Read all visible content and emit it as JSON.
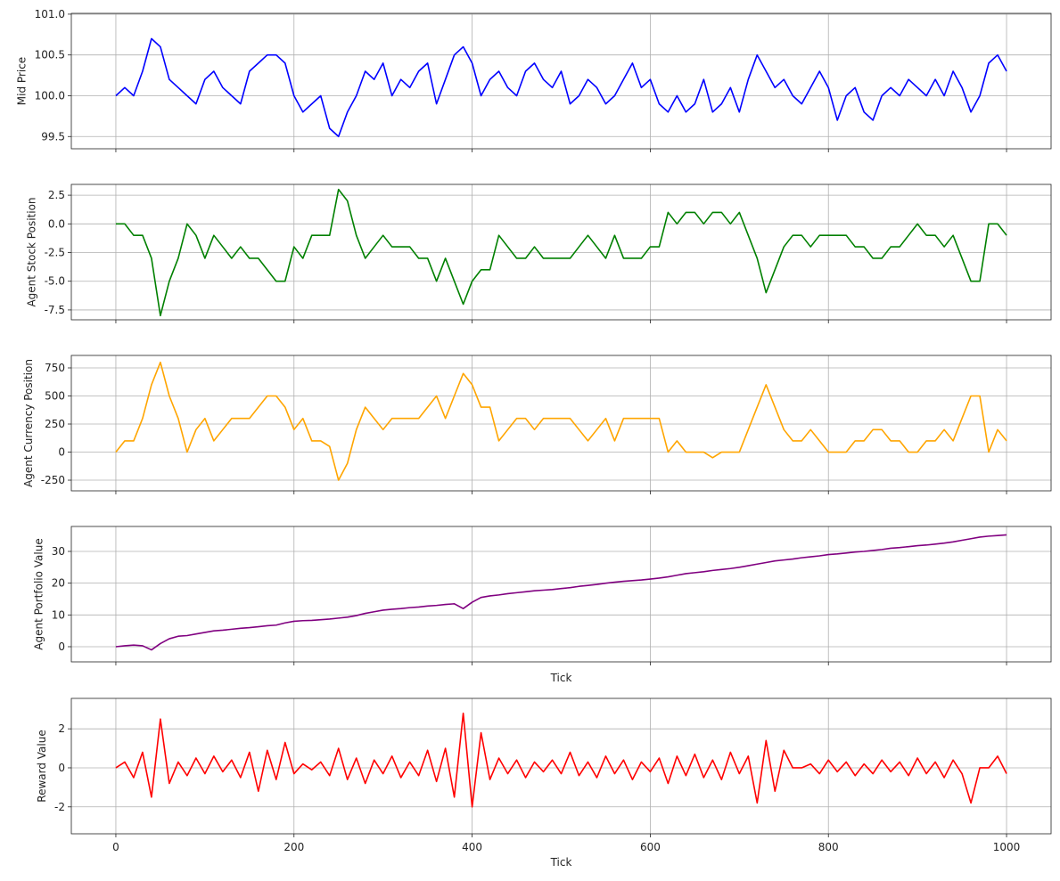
{
  "chart_data": [
    {
      "type": "line",
      "ylabel": "Mid Price",
      "color": "#0000ff",
      "grid": true,
      "xticklabels": false,
      "x": [
        0,
        10,
        20,
        30,
        40,
        50,
        60,
        70,
        80,
        90,
        100,
        110,
        120,
        130,
        140,
        150,
        160,
        170,
        180,
        190,
        200,
        210,
        220,
        230,
        240,
        250,
        260,
        270,
        280,
        290,
        300,
        310,
        320,
        330,
        340,
        350,
        360,
        370,
        380,
        390,
        400,
        410,
        420,
        430,
        440,
        450,
        460,
        470,
        480,
        490,
        500,
        510,
        520,
        530,
        540,
        550,
        560,
        570,
        580,
        590,
        600,
        610,
        620,
        630,
        640,
        650,
        660,
        670,
        680,
        690,
        700,
        710,
        720,
        730,
        740,
        750,
        760,
        770,
        780,
        790,
        800,
        810,
        820,
        830,
        840,
        850,
        860,
        870,
        880,
        890,
        900,
        910,
        920,
        930,
        940,
        950,
        960,
        970,
        980,
        990,
        1000
      ],
      "values": [
        100.0,
        100.1,
        100.0,
        100.3,
        100.7,
        100.6,
        100.2,
        100.1,
        100.0,
        99.9,
        100.2,
        100.3,
        100.1,
        100.0,
        99.9,
        100.3,
        100.4,
        100.5,
        100.5,
        100.4,
        100.0,
        99.8,
        99.9,
        100.0,
        99.6,
        99.5,
        99.8,
        100.0,
        100.3,
        100.2,
        100.4,
        100.0,
        100.2,
        100.1,
        100.3,
        100.4,
        99.9,
        100.2,
        100.5,
        100.6,
        100.4,
        100.0,
        100.2,
        100.3,
        100.1,
        100.0,
        100.3,
        100.4,
        100.2,
        100.1,
        100.3,
        99.9,
        100.0,
        100.2,
        100.1,
        99.9,
        100.0,
        100.2,
        100.4,
        100.1,
        100.2,
        99.9,
        99.8,
        100.0,
        99.8,
        99.9,
        100.2,
        99.8,
        99.9,
        100.1,
        99.8,
        100.2,
        100.5,
        100.3,
        100.1,
        100.2,
        100.0,
        99.9,
        100.1,
        100.3,
        100.1,
        99.7,
        100.0,
        100.1,
        99.8,
        99.7,
        100.0,
        100.1,
        100.0,
        100.2,
        100.1,
        100.0,
        100.2,
        100.0,
        100.3,
        100.1,
        99.8,
        100.0,
        100.4,
        100.5,
        100.3
      ],
      "xlim": [
        -50,
        1050
      ],
      "xticks": [
        0,
        200,
        400,
        600,
        800,
        1000
      ],
      "ylim": [
        99.35,
        101.01
      ],
      "yticks": [
        99.5,
        {
          "value": 100,
          "label": "100.0"
        },
        100.5,
        {
          "value": 101,
          "label": "101.0"
        }
      ]
    },
    {
      "type": "line",
      "ylabel": "Agent Stock Position",
      "color": "#008000",
      "grid": true,
      "xticklabels": false,
      "x": [
        0,
        10,
        20,
        30,
        40,
        50,
        60,
        70,
        80,
        90,
        100,
        110,
        120,
        130,
        140,
        150,
        160,
        170,
        180,
        190,
        200,
        210,
        220,
        230,
        240,
        250,
        260,
        270,
        280,
        290,
        300,
        310,
        320,
        330,
        340,
        350,
        360,
        370,
        380,
        390,
        400,
        410,
        420,
        430,
        440,
        450,
        460,
        470,
        480,
        490,
        500,
        510,
        520,
        530,
        540,
        550,
        560,
        570,
        580,
        590,
        600,
        610,
        620,
        630,
        640,
        650,
        660,
        670,
        680,
        690,
        700,
        710,
        720,
        730,
        740,
        750,
        760,
        770,
        780,
        790,
        800,
        810,
        820,
        830,
        840,
        850,
        860,
        870,
        880,
        890,
        900,
        910,
        920,
        930,
        940,
        950,
        960,
        970,
        980,
        990,
        1000
      ],
      "values": [
        0,
        0,
        -1,
        -1,
        -3,
        -8,
        -5,
        -3,
        0,
        -1,
        -3,
        -1,
        -2,
        -3,
        -2,
        -3,
        -3,
        -4,
        -5,
        -5,
        -2,
        -3,
        -1,
        -1,
        -1,
        3,
        2,
        -1,
        -3,
        -2,
        -1,
        -2,
        -2,
        -2,
        -3,
        -3,
        -5,
        -3,
        -5,
        -7,
        -5,
        -4,
        -4,
        -1,
        -2,
        -3,
        -3,
        -2,
        -3,
        -3,
        -3,
        -3,
        -2,
        -1,
        -2,
        -3,
        -1,
        -3,
        -3,
        -3,
        -2,
        -2,
        1,
        0,
        1,
        1,
        0,
        1,
        1,
        0,
        1,
        -1,
        -3,
        -6,
        -4,
        -2,
        -1,
        -1,
        -2,
        -1,
        -1,
        -1,
        -1,
        -2,
        -2,
        -3,
        -3,
        -2,
        -2,
        -1,
        0,
        -1,
        -1,
        -2,
        -1,
        -3,
        -5,
        -5,
        0,
        0,
        -1
      ],
      "xlim": [
        -50,
        1050
      ],
      "xticks": [
        0,
        200,
        400,
        600,
        800,
        1000
      ],
      "ylim": [
        -8.36,
        3.44
      ],
      "yticks": [
        -7.5,
        {
          "value": -5,
          "label": "-5.0"
        },
        -2.5,
        {
          "value": 0,
          "label": "0.0"
        },
        2.5
      ]
    },
    {
      "type": "line",
      "ylabel": "Agent Currency Position",
      "color": "#ffa500",
      "grid": true,
      "xticklabels": false,
      "x": [
        0,
        10,
        20,
        30,
        40,
        50,
        60,
        70,
        80,
        90,
        100,
        110,
        120,
        130,
        140,
        150,
        160,
        170,
        180,
        190,
        200,
        210,
        220,
        230,
        240,
        250,
        260,
        270,
        280,
        290,
        300,
        310,
        320,
        330,
        340,
        350,
        360,
        370,
        380,
        390,
        400,
        410,
        420,
        430,
        440,
        450,
        460,
        470,
        480,
        490,
        500,
        510,
        520,
        530,
        540,
        550,
        560,
        570,
        580,
        590,
        600,
        610,
        620,
        630,
        640,
        650,
        660,
        670,
        680,
        690,
        700,
        710,
        720,
        730,
        740,
        750,
        760,
        770,
        780,
        790,
        800,
        810,
        820,
        830,
        840,
        850,
        860,
        870,
        880,
        890,
        900,
        910,
        920,
        930,
        940,
        950,
        960,
        970,
        980,
        990,
        1000
      ],
      "values": [
        0,
        100,
        100,
        300,
        600,
        800,
        500,
        300,
        0,
        200,
        300,
        100,
        200,
        300,
        300,
        300,
        400,
        500,
        500,
        400,
        200,
        300,
        100,
        100,
        50,
        -250,
        -100,
        200,
        400,
        300,
        200,
        300,
        300,
        300,
        300,
        400,
        500,
        300,
        500,
        700,
        600,
        400,
        400,
        100,
        200,
        300,
        300,
        200,
        300,
        300,
        300,
        300,
        200,
        100,
        200,
        300,
        100,
        300,
        300,
        300,
        300,
        300,
        0,
        100,
        0,
        0,
        0,
        -50,
        0,
        0,
        0,
        200,
        400,
        600,
        400,
        200,
        100,
        100,
        200,
        100,
        0,
        0,
        0,
        100,
        100,
        200,
        200,
        100,
        100,
        0,
        0,
        100,
        100,
        200,
        100,
        300,
        500,
        500,
        0,
        200,
        100
      ],
      "xlim": [
        -50,
        1050
      ],
      "xticks": [
        0,
        200,
        400,
        600,
        800,
        1000
      ],
      "ylim": [
        -345,
        861
      ],
      "yticks": [
        -250,
        0,
        250,
        500,
        750
      ]
    },
    {
      "type": "line",
      "ylabel": "Agent Portfolio Value",
      "xlabel": "Tick",
      "color": "#800080",
      "grid": true,
      "xticklabels": false,
      "x": [
        0,
        10,
        20,
        30,
        40,
        50,
        60,
        70,
        80,
        90,
        100,
        110,
        120,
        130,
        140,
        150,
        160,
        170,
        180,
        190,
        200,
        210,
        220,
        230,
        240,
        250,
        260,
        270,
        280,
        290,
        300,
        310,
        320,
        330,
        340,
        350,
        360,
        370,
        380,
        390,
        400,
        410,
        420,
        430,
        440,
        450,
        460,
        470,
        480,
        490,
        500,
        510,
        520,
        530,
        540,
        550,
        560,
        570,
        580,
        590,
        600,
        610,
        620,
        630,
        640,
        650,
        660,
        670,
        680,
        690,
        700,
        710,
        720,
        730,
        740,
        750,
        760,
        770,
        780,
        790,
        800,
        810,
        820,
        830,
        840,
        850,
        860,
        870,
        880,
        890,
        900,
        910,
        920,
        930,
        940,
        950,
        960,
        970,
        980,
        990,
        1000
      ],
      "values": [
        0,
        0.3,
        0.5,
        0.3,
        -1,
        1,
        2.5,
        3.3,
        3.5,
        4,
        4.5,
        5,
        5.2,
        5.5,
        5.8,
        6,
        6.3,
        6.6,
        6.8,
        7.5,
        8,
        8.2,
        8.3,
        8.5,
        8.7,
        9,
        9.3,
        9.8,
        10.5,
        11,
        11.5,
        11.8,
        12,
        12.3,
        12.5,
        12.8,
        13,
        13.3,
        13.5,
        12,
        14,
        15.5,
        16,
        16.3,
        16.7,
        17,
        17.3,
        17.6,
        17.8,
        18,
        18.3,
        18.6,
        19,
        19.3,
        19.6,
        20,
        20.3,
        20.6,
        20.8,
        21,
        21.3,
        21.6,
        22,
        22.5,
        23,
        23.3,
        23.6,
        24,
        24.3,
        24.6,
        25,
        25.5,
        26,
        26.5,
        27,
        27.3,
        27.6,
        28,
        28.3,
        28.6,
        29,
        29.2,
        29.5,
        29.8,
        30,
        30.3,
        30.6,
        31,
        31.2,
        31.5,
        31.8,
        32,
        32.3,
        32.6,
        33,
        33.5,
        34,
        34.5,
        34.8,
        35,
        35.2
      ],
      "xlim": [
        -50,
        1050
      ],
      "xticks": [
        0,
        200,
        400,
        600,
        800,
        1000
      ],
      "ylim": [
        -4.77,
        37.85
      ],
      "yticks": [
        0,
        10,
        20,
        30
      ]
    },
    {
      "type": "line",
      "ylabel": "Reward Value",
      "xlabel": "Tick",
      "color": "#ff0000",
      "grid": true,
      "xticklabels": true,
      "x": [
        0,
        10,
        20,
        30,
        40,
        50,
        60,
        70,
        80,
        90,
        100,
        110,
        120,
        130,
        140,
        150,
        160,
        170,
        180,
        190,
        200,
        210,
        220,
        230,
        240,
        250,
        260,
        270,
        280,
        290,
        300,
        310,
        320,
        330,
        340,
        350,
        360,
        370,
        380,
        390,
        400,
        410,
        420,
        430,
        440,
        450,
        460,
        470,
        480,
        490,
        500,
        510,
        520,
        530,
        540,
        550,
        560,
        570,
        580,
        590,
        600,
        610,
        620,
        630,
        640,
        650,
        660,
        670,
        680,
        690,
        700,
        710,
        720,
        730,
        740,
        750,
        760,
        770,
        780,
        790,
        800,
        810,
        820,
        830,
        840,
        850,
        860,
        870,
        880,
        890,
        900,
        910,
        920,
        930,
        940,
        950,
        960,
        970,
        980,
        990,
        1000
      ],
      "values": [
        0,
        0.3,
        -0.5,
        0.8,
        -1.5,
        2.5,
        -0.8,
        0.3,
        -0.4,
        0.5,
        -0.3,
        0.6,
        -0.2,
        0.4,
        -0.5,
        0.8,
        -1.2,
        0.9,
        -0.6,
        1.3,
        -0.3,
        0.2,
        -0.1,
        0.3,
        -0.4,
        1.0,
        -0.6,
        0.5,
        -0.8,
        0.4,
        -0.3,
        0.6,
        -0.5,
        0.3,
        -0.4,
        0.9,
        -0.7,
        1.0,
        -1.5,
        2.8,
        -2.0,
        1.8,
        -0.6,
        0.5,
        -0.3,
        0.4,
        -0.5,
        0.3,
        -0.2,
        0.4,
        -0.3,
        0.8,
        -0.4,
        0.3,
        -0.5,
        0.6,
        -0.3,
        0.4,
        -0.6,
        0.3,
        -0.2,
        0.5,
        -0.8,
        0.6,
        -0.4,
        0.7,
        -0.5,
        0.4,
        -0.6,
        0.8,
        -0.3,
        0.6,
        -1.8,
        1.4,
        -1.2,
        0.9,
        0,
        0,
        0.2,
        -0.3,
        0.4,
        -0.2,
        0.3,
        -0.4,
        0.2,
        -0.3,
        0.4,
        -0.2,
        0.3,
        -0.4,
        0.5,
        -0.3,
        0.3,
        -0.5,
        0.4,
        -0.3,
        -1.8,
        0,
        0,
        0.6,
        -0.3
      ],
      "xlim": [
        -50,
        1050
      ],
      "xticks": [
        0,
        200,
        400,
        600,
        800,
        1000
      ],
      "ylim": [
        -3.38,
        3.56
      ],
      "yticks": [
        -2,
        0,
        2
      ]
    }
  ]
}
